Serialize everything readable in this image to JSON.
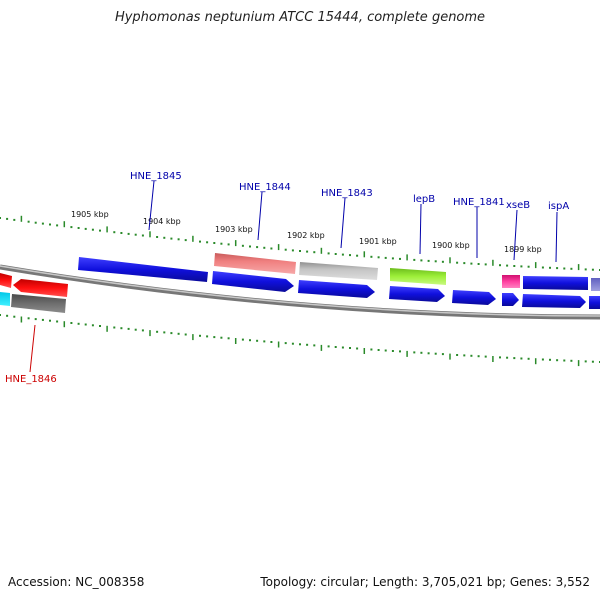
{
  "title": "Hyphomonas neptunium ATCC 15444, complete genome",
  "footer": {
    "accession": "Accession: NC_008358",
    "stats": "Topology: circular; Length: 3,705,021 bp; Genes: 3,552"
  },
  "colors": {
    "forward_gene": "#1212dd",
    "label_blue": "#0000aa",
    "label_red": "#cc0000",
    "tick_green": "#2a8a2a",
    "backbone": "#8a8a8a"
  },
  "ticks": [
    "1905 kbp",
    "1904 kbp",
    "1903 kbp",
    "1902 kbp",
    "1901 kbp",
    "1900 kbp",
    "1899 kbp"
  ],
  "gene_labels": [
    "HNE_1845",
    "HNE_1844",
    "HNE_1843",
    "lepB",
    "HNE_1841",
    "xseB",
    "ispA",
    "HNE_1846"
  ]
}
